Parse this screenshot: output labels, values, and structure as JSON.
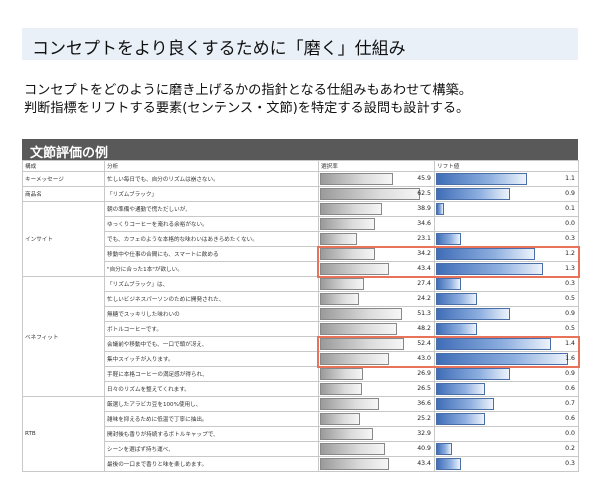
{
  "title": "コンセプトをより良くするために「磨く」仕組み",
  "description": [
    "コンセプトをどのように磨き上げるかの指針となる仕組みもあわせて構築。",
    "判断指標をリフトする要素(センテンス・文節)を特定する設問も設計する。"
  ],
  "table": {
    "title": "文節評価の例",
    "headers": [
      "構成",
      "分析",
      "選択率",
      "リフト値"
    ],
    "groups": [
      {
        "name": "キーメッセージ",
        "rows": [
          {
            "text": "忙しい毎日でも、自分のリズムは崩さない。",
            "rate": 45.9,
            "lift": 1.1
          }
        ]
      },
      {
        "name": "商品名",
        "rows": [
          {
            "text": "「リズムブラック」",
            "rate": 62.5,
            "lift": 0.9
          }
        ]
      },
      {
        "name": "インサイト",
        "rows": [
          {
            "text": "朝の準備や通勤で慌ただしいが、",
            "rate": 38.9,
            "lift": 0.1
          },
          {
            "text": "ゆっくりコーヒーを淹れる余裕がない。",
            "rate": 34.6,
            "lift": 0.0
          },
          {
            "text": "でも、カフェのような本格的な味わいはあきらめたくない。",
            "rate": 23.1,
            "lift": 0.3
          },
          {
            "text": "移動中や仕事の合間にも、スマートに飲める",
            "rate": 34.2,
            "lift": 1.2
          },
          {
            "text": "\"自分に合った1本\"が欲しい。",
            "rate": 43.4,
            "lift": 1.3
          }
        ]
      },
      {
        "name": "ベネフィット",
        "rows": [
          {
            "text": "「リズムブラック」は、",
            "rate": 27.4,
            "lift": 0.3
          },
          {
            "text": "忙しいビジネスパーソンのために開発された、",
            "rate": 24.2,
            "lift": 0.5
          },
          {
            "text": "無糖でスッキリした味わいの",
            "rate": 51.3,
            "lift": 0.9
          },
          {
            "text": "ボトルコーヒーです。",
            "rate": 48.2,
            "lift": 0.5
          },
          {
            "text": "会議前や移動中でも、一口で頭が冴え、",
            "rate": 52.4,
            "lift": 1.4
          },
          {
            "text": "集中スイッチが入ります。",
            "rate": 43.0,
            "lift": 1.6
          },
          {
            "text": "手軽に本格コーヒーの満足感が得られ、",
            "rate": 26.9,
            "lift": 0.9
          },
          {
            "text": "日々のリズムを整えてくれます。",
            "rate": 26.5,
            "lift": 0.6
          }
        ]
      },
      {
        "name": "RTB",
        "rows": [
          {
            "text": "厳選したアラビカ豆を100%使用し、",
            "rate": 36.6,
            "lift": 0.7
          },
          {
            "text": "雑味を抑えるために低温で丁寧に抽出。",
            "rate": 25.2,
            "lift": 0.6
          },
          {
            "text": "開封後も香りが持続するボトルキャップで、",
            "rate": 32.9,
            "lift": 0.0
          },
          {
            "text": "シーンを選ばず持ち運べ、",
            "rate": 40.9,
            "lift": 0.2
          },
          {
            "text": "最後の一口まで香りと味を楽しめます。",
            "rate": 43.4,
            "lift": 0.3
          }
        ]
      }
    ]
  },
  "colors": {
    "title_bg": "#e9f0f8",
    "table_header_bg": "#595959",
    "rate_bar": "#9a9a9a",
    "lift_bar": "#3f6db7",
    "highlight": "#e8735a"
  }
}
